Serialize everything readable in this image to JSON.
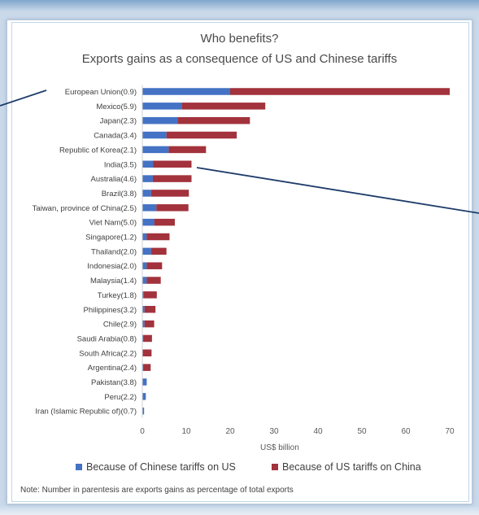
{
  "chart_data": {
    "type": "bar",
    "orientation": "horizontal",
    "stacked": true,
    "title": "Who benefits?",
    "subtitle": "Exports gains as a consequence of US and Chinese tariffs",
    "xlabel": "US$ billion",
    "xlim": [
      0,
      70
    ],
    "xticks": [
      0,
      10,
      20,
      30,
      40,
      50,
      60,
      70
    ],
    "categories": [
      "European Union(0.9)",
      "Mexico(5.9)",
      "Japan(2.3)",
      "Canada(3.4)",
      "Republic of Korea(2.1)",
      "India(3.5)",
      "Australia(4.6)",
      "Brazil(3.8)",
      "Taiwan, province of China(2.5)",
      "Viet Nam(5.0)",
      "Singapore(1.2)",
      "Thailand(2.0)",
      "Indonesia(2.0)",
      "Malaysia(1.4)",
      "Turkey(1.8)",
      "Philippines(3.2)",
      "Chile(2.9)",
      "Saudi Arabia(0.8)",
      "South Africa(2.2)",
      "Argentina(2.4)",
      "Pakistan(3.8)",
      "Peru(2.2)",
      "Iran (Islamic Republic of)(0.7)"
    ],
    "series": [
      {
        "name": "Because of Chinese tariffs on US",
        "color": "#4472c4",
        "values": [
          20.0,
          9.0,
          8.0,
          5.5,
          6.0,
          2.5,
          2.4,
          2.0,
          3.2,
          2.7,
          1.0,
          2.0,
          1.0,
          1.0,
          0.3,
          0.5,
          0.5,
          0.2,
          0.1,
          0.2,
          1.0,
          0.8,
          0.4
        ]
      },
      {
        "name": "Because of US tariffs on China",
        "color": "#a2323c",
        "values": [
          50.0,
          19.0,
          16.5,
          16.0,
          8.5,
          8.7,
          8.8,
          8.6,
          7.3,
          4.7,
          5.2,
          3.5,
          3.5,
          3.2,
          3.0,
          2.5,
          2.2,
          2.0,
          2.0,
          1.7,
          0.0,
          0.0,
          0.0
        ]
      }
    ],
    "legend": "bottom",
    "grid": false
  },
  "note": "Note: Number in parentesis are exports gains as percentage of total exports"
}
